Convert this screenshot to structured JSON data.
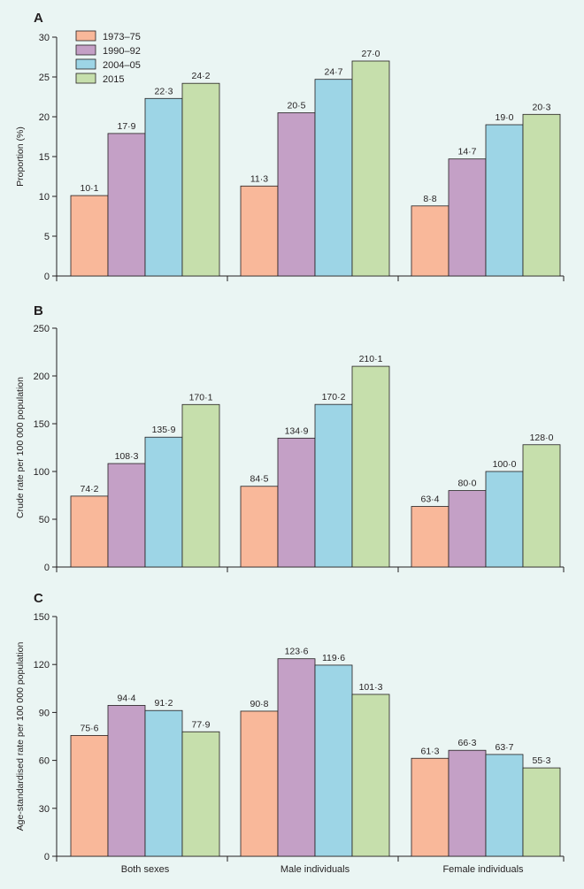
{
  "colors": {
    "background": "#eaf5f3",
    "axis": "#231f20",
    "series": [
      "#f9b89a",
      "#c4a0c6",
      "#9dd5e6",
      "#c6dfac"
    ]
  },
  "legend": [
    "1973–75",
    "1990–92",
    "2004–05",
    "2015"
  ],
  "x_categories": [
    "Both sexes",
    "Male individuals",
    "Female individuals"
  ],
  "chart_data": [
    {
      "type": "bar",
      "panel": "A",
      "ylabel": "Proportion (%)",
      "ylim": [
        0,
        30
      ],
      "yticks": [
        0,
        5,
        10,
        15,
        20,
        25,
        30
      ],
      "categories": [
        "Both sexes",
        "Male individuals",
        "Female individuals"
      ],
      "series": [
        {
          "name": "1973–75",
          "values": [
            10.1,
            11.3,
            8.8
          ],
          "labels": [
            "10·1",
            "11·3",
            "8·8"
          ]
        },
        {
          "name": "1990–92",
          "values": [
            17.9,
            20.5,
            14.7
          ],
          "labels": [
            "17·9",
            "20·5",
            "14·7"
          ]
        },
        {
          "name": "2004–05",
          "values": [
            22.3,
            24.7,
            19.0
          ],
          "labels": [
            "22·3",
            "24·7",
            "19·0"
          ]
        },
        {
          "name": "2015",
          "values": [
            24.2,
            27.0,
            20.3
          ],
          "labels": [
            "24·2",
            "27·0",
            "20·3"
          ]
        }
      ],
      "legend_position": "top-left",
      "show_x_labels": false
    },
    {
      "type": "bar",
      "panel": "B",
      "ylabel": "Crude rate per 100 000 population",
      "ylim": [
        0,
        250
      ],
      "yticks": [
        0,
        50,
        100,
        150,
        200,
        250
      ],
      "categories": [
        "Both sexes",
        "Male individuals",
        "Female individuals"
      ],
      "series": [
        {
          "name": "1973–75",
          "values": [
            74.2,
            84.5,
            63.4
          ],
          "labels": [
            "74·2",
            "84·5",
            "63·4"
          ]
        },
        {
          "name": "1990–92",
          "values": [
            108.3,
            134.9,
            80.0
          ],
          "labels": [
            "108·3",
            "134·9",
            "80·0"
          ]
        },
        {
          "name": "2004–05",
          "values": [
            135.9,
            170.2,
            100.0
          ],
          "labels": [
            "135·9",
            "170·2",
            "100·0"
          ]
        },
        {
          "name": "2015",
          "values": [
            170.1,
            210.1,
            128.0
          ],
          "labels": [
            "170·1",
            "210·1",
            "128·0"
          ]
        }
      ],
      "show_x_labels": false
    },
    {
      "type": "bar",
      "panel": "C",
      "ylabel": "Age-standardised rate per 100 000 population",
      "ylim": [
        0,
        150
      ],
      "yticks": [
        0,
        30,
        60,
        90,
        120,
        150
      ],
      "categories": [
        "Both sexes",
        "Male individuals",
        "Female individuals"
      ],
      "series": [
        {
          "name": "1973–75",
          "values": [
            75.6,
            90.8,
            61.3
          ],
          "labels": [
            "75·6",
            "90·8",
            "61·3"
          ]
        },
        {
          "name": "1990–92",
          "values": [
            94.4,
            123.6,
            66.3
          ],
          "labels": [
            "94·4",
            "123·6",
            "66·3"
          ]
        },
        {
          "name": "2004–05",
          "values": [
            91.2,
            119.6,
            63.7
          ],
          "labels": [
            "91·2",
            "119·6",
            "63·7"
          ]
        },
        {
          "name": "2015",
          "values": [
            77.9,
            101.3,
            55.3
          ],
          "labels": [
            "77·9",
            "101·3",
            "55·3"
          ]
        }
      ],
      "show_x_labels": true
    }
  ]
}
